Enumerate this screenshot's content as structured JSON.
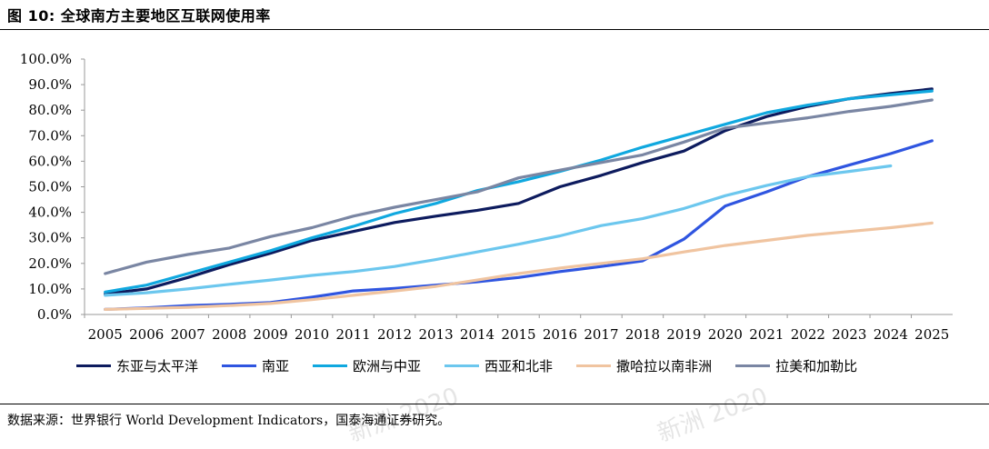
{
  "header": {
    "title": "图 10:  全球南方主要地区互联网使用率"
  },
  "footer": {
    "source": "数据来源：世界银行 World Development Indicators，国泰海通证券研究。"
  },
  "watermark": {
    "text1": "新洲 2020",
    "text2": "新洲 2020"
  },
  "chart_data": {
    "type": "line",
    "title": "",
    "xlabel": "",
    "ylabel": "",
    "ylim": [
      0,
      100
    ],
    "y_ticks": [
      "0.0%",
      "10.0%",
      "20.0%",
      "30.0%",
      "40.0%",
      "50.0%",
      "60.0%",
      "70.0%",
      "80.0%",
      "90.0%",
      "100.0%"
    ],
    "x": [
      "2005",
      "2006",
      "2007",
      "2008",
      "2009",
      "2010",
      "2011",
      "2012",
      "2013",
      "2014",
      "2015",
      "2016",
      "2017",
      "2018",
      "2019",
      "2020",
      "2021",
      "2022",
      "2023",
      "2024",
      "2025"
    ],
    "grid": false,
    "legend_position": "bottom",
    "series": [
      {
        "name": "东亚与太平洋",
        "color": "#0d1b5e",
        "values": [
          8.0,
          10.0,
          14.5,
          19.5,
          24.0,
          29.0,
          32.5,
          36.0,
          38.5,
          40.8,
          43.5,
          50.0,
          54.5,
          59.5,
          64.0,
          72.0,
          77.5,
          81.5,
          84.5,
          86.5,
          88.3
        ]
      },
      {
        "name": "南亚",
        "color": "#2f55e0",
        "values": [
          2.0,
          2.6,
          3.5,
          4.0,
          4.7,
          6.8,
          9.2,
          10.2,
          11.5,
          12.8,
          14.5,
          16.8,
          18.8,
          21.0,
          29.5,
          42.5,
          48.0,
          54.0,
          58.5,
          63.0,
          68.0
        ]
      },
      {
        "name": "欧洲与中亚",
        "color": "#10a8df",
        "values": [
          8.8,
          11.5,
          16.0,
          20.5,
          25.0,
          30.0,
          34.5,
          39.5,
          43.5,
          48.5,
          52.0,
          56.0,
          60.5,
          65.5,
          70.0,
          74.5,
          79.0,
          82.0,
          84.5,
          86.0,
          87.5
        ]
      },
      {
        "name": "西亚和北非",
        "color": "#6cc7ee",
        "values": [
          7.5,
          8.5,
          10.0,
          11.8,
          13.5,
          15.3,
          16.8,
          18.8,
          21.5,
          24.5,
          27.5,
          30.8,
          34.8,
          37.5,
          41.5,
          46.5,
          50.5,
          54.0,
          56.0,
          58.2,
          null
        ]
      },
      {
        "name": "撒哈拉以南非洲",
        "color": "#f0c4a0",
        "values": [
          2.0,
          2.4,
          2.8,
          3.5,
          4.3,
          5.8,
          7.5,
          9.2,
          11.0,
          13.5,
          16.0,
          18.2,
          20.0,
          21.8,
          24.5,
          27.0,
          29.0,
          31.0,
          32.5,
          34.0,
          35.8
        ]
      },
      {
        "name": "拉美和加勒比",
        "color": "#7a86a3",
        "values": [
          16.0,
          20.5,
          23.5,
          26.0,
          30.5,
          34.0,
          38.5,
          42.0,
          45.0,
          48.0,
          53.5,
          56.5,
          59.5,
          62.5,
          67.5,
          73.0,
          75.0,
          77.0,
          79.5,
          81.5,
          84.0
        ]
      }
    ]
  }
}
